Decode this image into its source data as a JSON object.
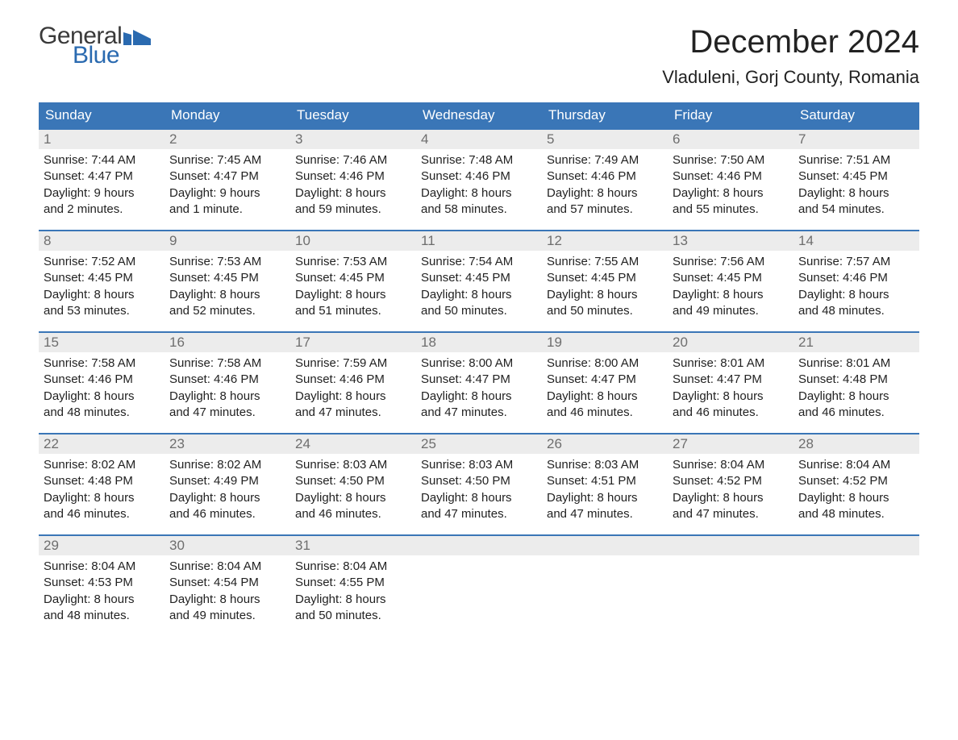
{
  "logo": {
    "word1": "General",
    "word2": "Blue",
    "text_color": "#3a3a3a",
    "accent_color": "#2a6ab0"
  },
  "title": "December 2024",
  "location": "Vladuleni, Gorj County, Romania",
  "header_bg": "#3a76b7",
  "header_text": "#ffffff",
  "daynum_bg": "#ececec",
  "daynum_text": "#6e6e6e",
  "body_text": "#222222",
  "sep_color": "#3a76b7",
  "day_names": [
    "Sunday",
    "Monday",
    "Tuesday",
    "Wednesday",
    "Thursday",
    "Friday",
    "Saturday"
  ],
  "weeks": [
    [
      {
        "n": "1",
        "sr": "Sunrise: 7:44 AM",
        "ss": "Sunset: 4:47 PM",
        "d1": "Daylight: 9 hours",
        "d2": "and 2 minutes."
      },
      {
        "n": "2",
        "sr": "Sunrise: 7:45 AM",
        "ss": "Sunset: 4:47 PM",
        "d1": "Daylight: 9 hours",
        "d2": "and 1 minute."
      },
      {
        "n": "3",
        "sr": "Sunrise: 7:46 AM",
        "ss": "Sunset: 4:46 PM",
        "d1": "Daylight: 8 hours",
        "d2": "and 59 minutes."
      },
      {
        "n": "4",
        "sr": "Sunrise: 7:48 AM",
        "ss": "Sunset: 4:46 PM",
        "d1": "Daylight: 8 hours",
        "d2": "and 58 minutes."
      },
      {
        "n": "5",
        "sr": "Sunrise: 7:49 AM",
        "ss": "Sunset: 4:46 PM",
        "d1": "Daylight: 8 hours",
        "d2": "and 57 minutes."
      },
      {
        "n": "6",
        "sr": "Sunrise: 7:50 AM",
        "ss": "Sunset: 4:46 PM",
        "d1": "Daylight: 8 hours",
        "d2": "and 55 minutes."
      },
      {
        "n": "7",
        "sr": "Sunrise: 7:51 AM",
        "ss": "Sunset: 4:45 PM",
        "d1": "Daylight: 8 hours",
        "d2": "and 54 minutes."
      }
    ],
    [
      {
        "n": "8",
        "sr": "Sunrise: 7:52 AM",
        "ss": "Sunset: 4:45 PM",
        "d1": "Daylight: 8 hours",
        "d2": "and 53 minutes."
      },
      {
        "n": "9",
        "sr": "Sunrise: 7:53 AM",
        "ss": "Sunset: 4:45 PM",
        "d1": "Daylight: 8 hours",
        "d2": "and 52 minutes."
      },
      {
        "n": "10",
        "sr": "Sunrise: 7:53 AM",
        "ss": "Sunset: 4:45 PM",
        "d1": "Daylight: 8 hours",
        "d2": "and 51 minutes."
      },
      {
        "n": "11",
        "sr": "Sunrise: 7:54 AM",
        "ss": "Sunset: 4:45 PM",
        "d1": "Daylight: 8 hours",
        "d2": "and 50 minutes."
      },
      {
        "n": "12",
        "sr": "Sunrise: 7:55 AM",
        "ss": "Sunset: 4:45 PM",
        "d1": "Daylight: 8 hours",
        "d2": "and 50 minutes."
      },
      {
        "n": "13",
        "sr": "Sunrise: 7:56 AM",
        "ss": "Sunset: 4:45 PM",
        "d1": "Daylight: 8 hours",
        "d2": "and 49 minutes."
      },
      {
        "n": "14",
        "sr": "Sunrise: 7:57 AM",
        "ss": "Sunset: 4:46 PM",
        "d1": "Daylight: 8 hours",
        "d2": "and 48 minutes."
      }
    ],
    [
      {
        "n": "15",
        "sr": "Sunrise: 7:58 AM",
        "ss": "Sunset: 4:46 PM",
        "d1": "Daylight: 8 hours",
        "d2": "and 48 minutes."
      },
      {
        "n": "16",
        "sr": "Sunrise: 7:58 AM",
        "ss": "Sunset: 4:46 PM",
        "d1": "Daylight: 8 hours",
        "d2": "and 47 minutes."
      },
      {
        "n": "17",
        "sr": "Sunrise: 7:59 AM",
        "ss": "Sunset: 4:46 PM",
        "d1": "Daylight: 8 hours",
        "d2": "and 47 minutes."
      },
      {
        "n": "18",
        "sr": "Sunrise: 8:00 AM",
        "ss": "Sunset: 4:47 PM",
        "d1": "Daylight: 8 hours",
        "d2": "and 47 minutes."
      },
      {
        "n": "19",
        "sr": "Sunrise: 8:00 AM",
        "ss": "Sunset: 4:47 PM",
        "d1": "Daylight: 8 hours",
        "d2": "and 46 minutes."
      },
      {
        "n": "20",
        "sr": "Sunrise: 8:01 AM",
        "ss": "Sunset: 4:47 PM",
        "d1": "Daylight: 8 hours",
        "d2": "and 46 minutes."
      },
      {
        "n": "21",
        "sr": "Sunrise: 8:01 AM",
        "ss": "Sunset: 4:48 PM",
        "d1": "Daylight: 8 hours",
        "d2": "and 46 minutes."
      }
    ],
    [
      {
        "n": "22",
        "sr": "Sunrise: 8:02 AM",
        "ss": "Sunset: 4:48 PM",
        "d1": "Daylight: 8 hours",
        "d2": "and 46 minutes."
      },
      {
        "n": "23",
        "sr": "Sunrise: 8:02 AM",
        "ss": "Sunset: 4:49 PM",
        "d1": "Daylight: 8 hours",
        "d2": "and 46 minutes."
      },
      {
        "n": "24",
        "sr": "Sunrise: 8:03 AM",
        "ss": "Sunset: 4:50 PM",
        "d1": "Daylight: 8 hours",
        "d2": "and 46 minutes."
      },
      {
        "n": "25",
        "sr": "Sunrise: 8:03 AM",
        "ss": "Sunset: 4:50 PM",
        "d1": "Daylight: 8 hours",
        "d2": "and 47 minutes."
      },
      {
        "n": "26",
        "sr": "Sunrise: 8:03 AM",
        "ss": "Sunset: 4:51 PM",
        "d1": "Daylight: 8 hours",
        "d2": "and 47 minutes."
      },
      {
        "n": "27",
        "sr": "Sunrise: 8:04 AM",
        "ss": "Sunset: 4:52 PM",
        "d1": "Daylight: 8 hours",
        "d2": "and 47 minutes."
      },
      {
        "n": "28",
        "sr": "Sunrise: 8:04 AM",
        "ss": "Sunset: 4:52 PM",
        "d1": "Daylight: 8 hours",
        "d2": "and 48 minutes."
      }
    ],
    [
      {
        "n": "29",
        "sr": "Sunrise: 8:04 AM",
        "ss": "Sunset: 4:53 PM",
        "d1": "Daylight: 8 hours",
        "d2": "and 48 minutes."
      },
      {
        "n": "30",
        "sr": "Sunrise: 8:04 AM",
        "ss": "Sunset: 4:54 PM",
        "d1": "Daylight: 8 hours",
        "d2": "and 49 minutes."
      },
      {
        "n": "31",
        "sr": "Sunrise: 8:04 AM",
        "ss": "Sunset: 4:55 PM",
        "d1": "Daylight: 8 hours",
        "d2": "and 50 minutes."
      },
      null,
      null,
      null,
      null
    ]
  ]
}
